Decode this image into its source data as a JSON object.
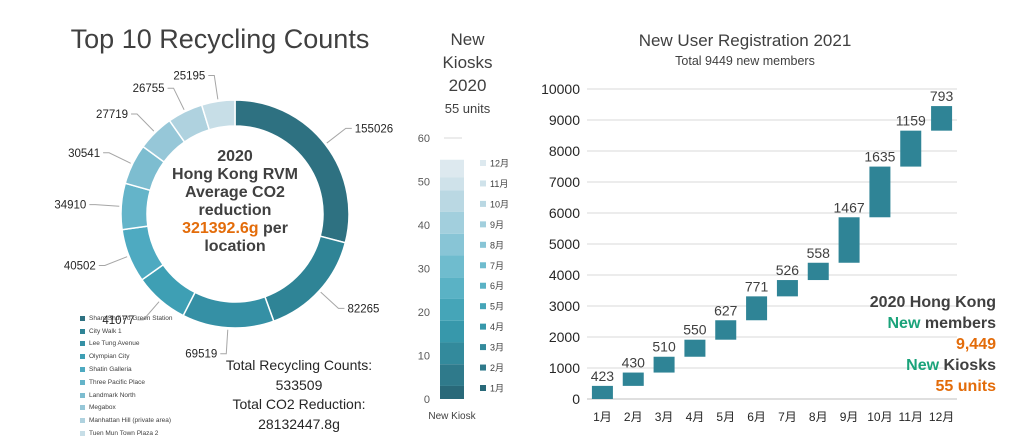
{
  "charts_title_left": "Top 10 Recycling Counts",
  "donut": {
    "center_lines": [
      "2020",
      "Hong Kong RVM",
      "Average CO2",
      "reduction"
    ],
    "center_value": "321392.6g",
    "center_value_suffix": " per",
    "center_last": "location",
    "totals": [
      "Total Recycling Counts:",
      "533509",
      "Total CO2 Reduction:",
      "28132447.8g"
    ]
  },
  "kiosk": {
    "title_lines": [
      "New",
      "Kiosks",
      "2020"
    ],
    "subtitle": "55 units",
    "xlabel": "New Kiosk"
  },
  "waterfall": {
    "title": "New User Registration 2021",
    "subtitle": "Total 9449 new members",
    "summary": {
      "line1": "2020 Hong Kong",
      "line2_green": "New",
      "line2_rest": " members",
      "line3": "9,449",
      "line4_green": "New",
      "line4_rest": " Kiosks",
      "line5": "55 units"
    }
  },
  "colors": {
    "donut": [
      "#2e7181",
      "#2f8496",
      "#3590a5",
      "#3e9fb4",
      "#4eaac1",
      "#64b4c9",
      "#7dbdd0",
      "#96c7d8",
      "#afd2df",
      "#c7dee7"
    ],
    "kiosk": [
      "#296979",
      "#2f7a8b",
      "#338a9c",
      "#3798ab",
      "#45a5b8",
      "#5ab2c5",
      "#6fbcce",
      "#88c5d6",
      "#a2cfdd",
      "#bad8e3",
      "#cfe2ea",
      "#dde9ef"
    ],
    "waterfall": "#2f8496",
    "orange": "#e36c0a",
    "green": "#1aa37a"
  },
  "chart_data": [
    {
      "type": "pie",
      "title": "Top 10 Recycling Counts",
      "categories": [
        "Sham Shui Po Green Station",
        "City Walk 1",
        "Lee Tung Avenue",
        "Olympian City",
        "Shatin Galleria",
        "Three Pacific Place",
        "Landmark North",
        "Megabox",
        "Manhattan Hill (private area)",
        "Tuen Mun Town Plaza 2"
      ],
      "values": [
        155026,
        82265,
        69519,
        41077,
        40502,
        34910,
        30541,
        27719,
        26755,
        25195
      ],
      "legend_position": "bottom-left"
    },
    {
      "type": "bar",
      "stacked": true,
      "categories": [
        "New Kiosk"
      ],
      "series": [
        {
          "name": "1月",
          "values": [
            3
          ]
        },
        {
          "name": "2月",
          "values": [
            5
          ]
        },
        {
          "name": "3月",
          "values": [
            5
          ]
        },
        {
          "name": "4月",
          "values": [
            5
          ]
        },
        {
          "name": "5月",
          "values": [
            5
          ]
        },
        {
          "name": "6月",
          "values": [
            5
          ]
        },
        {
          "name": "7月",
          "values": [
            5
          ]
        },
        {
          "name": "8月",
          "values": [
            5
          ]
        },
        {
          "name": "9月",
          "values": [
            5
          ]
        },
        {
          "name": "10月",
          "values": [
            5
          ]
        },
        {
          "name": "11月",
          "values": [
            3
          ]
        },
        {
          "name": "12月",
          "values": [
            4
          ]
        }
      ],
      "ylim": [
        0,
        60
      ],
      "yticks": [
        0,
        10,
        20,
        30,
        40,
        50,
        60
      ],
      "grid": false,
      "legend_position": "right"
    },
    {
      "type": "bar",
      "subtype": "waterfall",
      "title": "New User Registration 2021",
      "subtitle": "Total 9449 new members",
      "categories": [
        "1月",
        "2月",
        "3月",
        "4月",
        "5月",
        "6月",
        "7月",
        "8月",
        "9月",
        "10月",
        "11月",
        "12月"
      ],
      "values": [
        423,
        430,
        510,
        550,
        627,
        771,
        526,
        558,
        1467,
        1635,
        1159,
        793
      ],
      "ylim": [
        0,
        10000
      ],
      "yticks": [
        0,
        1000,
        2000,
        3000,
        4000,
        5000,
        6000,
        7000,
        8000,
        9000,
        10000
      ],
      "grid": true
    }
  ]
}
